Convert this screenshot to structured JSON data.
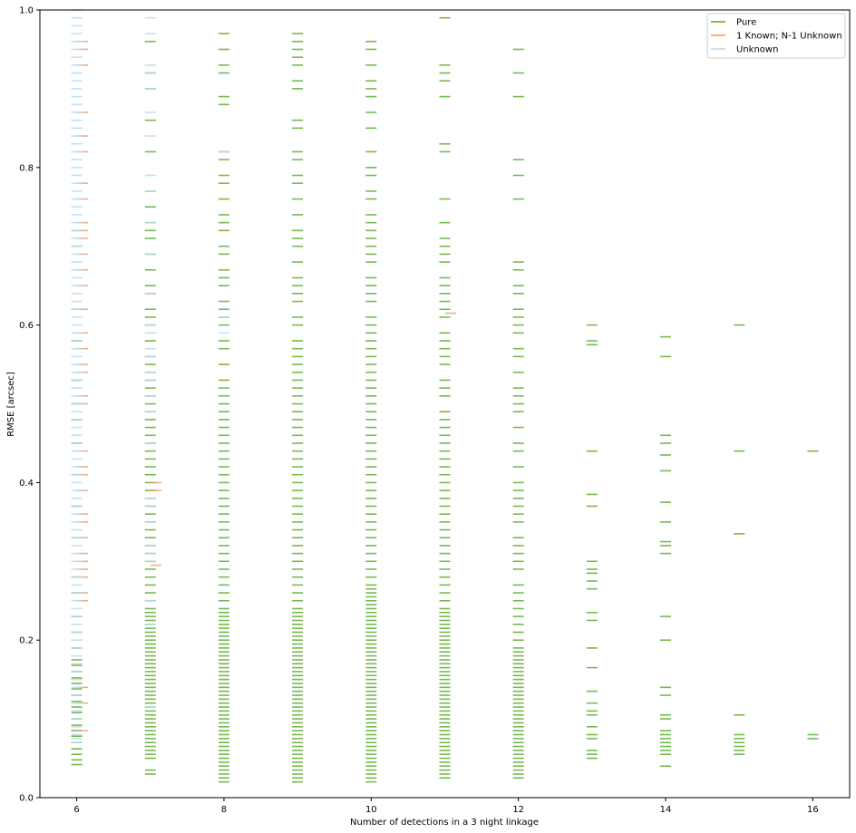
{
  "chart_data": {
    "type": "scatter",
    "marker": "horizontal-line",
    "title": "",
    "xlabel": "Number of detections in a 3 night linkage",
    "ylabel": "RMSE [arcsec]",
    "xlim": [
      5.5,
      16.5
    ],
    "ylim": [
      0.0,
      1.0
    ],
    "xticks": [
      6,
      8,
      10,
      12,
      14,
      16
    ],
    "yticks": [
      0.0,
      0.2,
      0.4,
      0.6,
      0.8,
      1.0
    ],
    "xtick_labels": [
      "6",
      "8",
      "10",
      "12",
      "14",
      "16"
    ],
    "ytick_labels": [
      "0.0",
      "0.2",
      "0.4",
      "0.6",
      "0.8",
      "1.0"
    ],
    "grid": false,
    "legend_position": "top-right",
    "series": [
      {
        "name": "Pure",
        "color": "#5fad30",
        "x_offset": 0.0,
        "points": [
          {
            "x": 6,
            "y": [
              0.042,
              0.048,
              0.055,
              0.062,
              0.07,
              0.078,
              0.085,
              0.092,
              0.1,
              0.108,
              0.115,
              0.122,
              0.13,
              0.138,
              0.145,
              0.152,
              0.16,
              0.168,
              0.175,
              0.19,
              0.21,
              0.23,
              0.26,
              0.28,
              0.33,
              0.37,
              0.41,
              0.45,
              0.48,
              0.5,
              0.53,
              0.58,
              0.62,
              0.7,
              0.72
            ]
          },
          {
            "x": 7,
            "y": [
              0.03,
              0.035,
              0.05,
              0.055,
              0.06,
              0.065,
              0.07,
              0.075,
              0.08,
              0.085,
              0.09,
              0.095,
              0.1,
              0.105,
              0.11,
              0.115,
              0.12,
              0.125,
              0.13,
              0.135,
              0.14,
              0.145,
              0.15,
              0.155,
              0.16,
              0.165,
              0.17,
              0.175,
              0.18,
              0.185,
              0.19,
              0.195,
              0.2,
              0.205,
              0.21,
              0.215,
              0.22,
              0.225,
              0.23,
              0.235,
              0.24,
              0.25,
              0.26,
              0.27,
              0.28,
              0.29,
              0.3,
              0.31,
              0.32,
              0.33,
              0.34,
              0.35,
              0.36,
              0.37,
              0.38,
              0.39,
              0.4,
              0.41,
              0.42,
              0.43,
              0.44,
              0.45,
              0.46,
              0.47,
              0.48,
              0.49,
              0.5,
              0.51,
              0.52,
              0.53,
              0.54,
              0.55,
              0.56,
              0.58,
              0.6,
              0.61,
              0.62,
              0.64,
              0.65,
              0.67,
              0.69,
              0.71,
              0.72,
              0.73,
              0.75,
              0.77,
              0.82,
              0.86,
              0.9,
              0.92,
              0.96
            ]
          },
          {
            "x": 8,
            "y": [
              0.02,
              0.025,
              0.03,
              0.035,
              0.04,
              0.045,
              0.05,
              0.055,
              0.06,
              0.065,
              0.07,
              0.075,
              0.08,
              0.085,
              0.09,
              0.095,
              0.1,
              0.105,
              0.11,
              0.115,
              0.12,
              0.125,
              0.13,
              0.135,
              0.14,
              0.145,
              0.15,
              0.155,
              0.16,
              0.165,
              0.17,
              0.175,
              0.18,
              0.185,
              0.19,
              0.195,
              0.2,
              0.205,
              0.21,
              0.215,
              0.22,
              0.225,
              0.23,
              0.235,
              0.24,
              0.25,
              0.26,
              0.27,
              0.28,
              0.29,
              0.3,
              0.31,
              0.32,
              0.33,
              0.34,
              0.35,
              0.36,
              0.37,
              0.38,
              0.39,
              0.4,
              0.41,
              0.42,
              0.43,
              0.44,
              0.45,
              0.46,
              0.47,
              0.48,
              0.49,
              0.5,
              0.51,
              0.52,
              0.53,
              0.55,
              0.57,
              0.58,
              0.6,
              0.61,
              0.62,
              0.63,
              0.65,
              0.66,
              0.67,
              0.69,
              0.7,
              0.72,
              0.73,
              0.74,
              0.76,
              0.78,
              0.79,
              0.81,
              0.82,
              0.88,
              0.89,
              0.92,
              0.93,
              0.95,
              0.97
            ]
          },
          {
            "x": 9,
            "y": [
              0.02,
              0.025,
              0.03,
              0.035,
              0.04,
              0.045,
              0.05,
              0.055,
              0.06,
              0.065,
              0.07,
              0.075,
              0.08,
              0.085,
              0.09,
              0.095,
              0.1,
              0.105,
              0.11,
              0.115,
              0.12,
              0.125,
              0.13,
              0.135,
              0.14,
              0.145,
              0.15,
              0.155,
              0.16,
              0.165,
              0.17,
              0.175,
              0.18,
              0.185,
              0.19,
              0.195,
              0.2,
              0.205,
              0.21,
              0.215,
              0.22,
              0.225,
              0.23,
              0.235,
              0.24,
              0.25,
              0.26,
              0.27,
              0.28,
              0.29,
              0.3,
              0.31,
              0.32,
              0.33,
              0.34,
              0.35,
              0.36,
              0.37,
              0.38,
              0.39,
              0.4,
              0.41,
              0.42,
              0.43,
              0.44,
              0.45,
              0.46,
              0.47,
              0.48,
              0.49,
              0.5,
              0.51,
              0.52,
              0.53,
              0.54,
              0.55,
              0.56,
              0.57,
              0.58,
              0.6,
              0.61,
              0.63,
              0.64,
              0.65,
              0.66,
              0.68,
              0.7,
              0.71,
              0.72,
              0.74,
              0.76,
              0.78,
              0.79,
              0.81,
              0.82,
              0.85,
              0.86,
              0.9,
              0.91,
              0.93,
              0.94,
              0.95,
              0.96,
              0.97
            ]
          },
          {
            "x": 10,
            "y": [
              0.02,
              0.025,
              0.03,
              0.035,
              0.04,
              0.045,
              0.05,
              0.055,
              0.06,
              0.065,
              0.07,
              0.075,
              0.08,
              0.085,
              0.09,
              0.095,
              0.1,
              0.105,
              0.11,
              0.115,
              0.12,
              0.125,
              0.13,
              0.135,
              0.14,
              0.145,
              0.15,
              0.155,
              0.16,
              0.165,
              0.17,
              0.175,
              0.18,
              0.185,
              0.19,
              0.195,
              0.2,
              0.205,
              0.21,
              0.215,
              0.22,
              0.225,
              0.23,
              0.235,
              0.24,
              0.245,
              0.25,
              0.255,
              0.26,
              0.265,
              0.27,
              0.28,
              0.29,
              0.3,
              0.31,
              0.32,
              0.33,
              0.34,
              0.35,
              0.36,
              0.37,
              0.38,
              0.39,
              0.4,
              0.41,
              0.42,
              0.43,
              0.44,
              0.45,
              0.46,
              0.47,
              0.48,
              0.49,
              0.5,
              0.51,
              0.52,
              0.53,
              0.54,
              0.55,
              0.56,
              0.57,
              0.58,
              0.59,
              0.6,
              0.61,
              0.63,
              0.64,
              0.65,
              0.66,
              0.68,
              0.69,
              0.7,
              0.71,
              0.72,
              0.73,
              0.74,
              0.76,
              0.77,
              0.79,
              0.8,
              0.82,
              0.85,
              0.87,
              0.89,
              0.9,
              0.91,
              0.93,
              0.95,
              0.96
            ]
          },
          {
            "x": 11,
            "y": [
              0.025,
              0.03,
              0.035,
              0.04,
              0.045,
              0.05,
              0.055,
              0.06,
              0.065,
              0.07,
              0.075,
              0.08,
              0.085,
              0.09,
              0.095,
              0.1,
              0.105,
              0.11,
              0.115,
              0.12,
              0.125,
              0.13,
              0.135,
              0.14,
              0.145,
              0.15,
              0.155,
              0.16,
              0.165,
              0.17,
              0.175,
              0.18,
              0.185,
              0.19,
              0.195,
              0.2,
              0.205,
              0.21,
              0.215,
              0.22,
              0.225,
              0.23,
              0.235,
              0.24,
              0.25,
              0.26,
              0.27,
              0.28,
              0.29,
              0.3,
              0.31,
              0.32,
              0.33,
              0.34,
              0.35,
              0.36,
              0.37,
              0.38,
              0.39,
              0.4,
              0.41,
              0.42,
              0.43,
              0.44,
              0.45,
              0.46,
              0.47,
              0.48,
              0.49,
              0.51,
              0.52,
              0.53,
              0.55,
              0.56,
              0.57,
              0.58,
              0.59,
              0.61,
              0.62,
              0.63,
              0.64,
              0.65,
              0.66,
              0.68,
              0.69,
              0.7,
              0.71,
              0.73,
              0.76,
              0.82,
              0.83,
              0.89,
              0.91,
              0.92,
              0.93,
              0.99
            ]
          },
          {
            "x": 12,
            "y": [
              0.025,
              0.03,
              0.035,
              0.04,
              0.045,
              0.05,
              0.055,
              0.06,
              0.065,
              0.07,
              0.075,
              0.08,
              0.085,
              0.09,
              0.095,
              0.1,
              0.105,
              0.11,
              0.115,
              0.12,
              0.125,
              0.13,
              0.135,
              0.14,
              0.145,
              0.15,
              0.155,
              0.16,
              0.165,
              0.17,
              0.175,
              0.18,
              0.185,
              0.19,
              0.2,
              0.21,
              0.22,
              0.23,
              0.24,
              0.25,
              0.26,
              0.27,
              0.29,
              0.3,
              0.31,
              0.32,
              0.33,
              0.35,
              0.36,
              0.37,
              0.38,
              0.39,
              0.4,
              0.42,
              0.44,
              0.45,
              0.47,
              0.49,
              0.5,
              0.51,
              0.52,
              0.54,
              0.56,
              0.57,
              0.59,
              0.6,
              0.61,
              0.62,
              0.64,
              0.65,
              0.67,
              0.68,
              0.76,
              0.79,
              0.81,
              0.89,
              0.92,
              0.95
            ]
          },
          {
            "x": 13,
            "y": [
              0.05,
              0.055,
              0.06,
              0.075,
              0.08,
              0.09,
              0.105,
              0.11,
              0.12,
              0.135,
              0.165,
              0.19,
              0.225,
              0.235,
              0.265,
              0.275,
              0.285,
              0.29,
              0.3,
              0.37,
              0.385,
              0.44,
              0.575,
              0.58,
              0.6
            ]
          },
          {
            "x": 14,
            "y": [
              0.04,
              0.055,
              0.06,
              0.065,
              0.07,
              0.075,
              0.08,
              0.085,
              0.1,
              0.105,
              0.13,
              0.14,
              0.2,
              0.23,
              0.31,
              0.32,
              0.325,
              0.35,
              0.375,
              0.415,
              0.435,
              0.45,
              0.46,
              0.56,
              0.585
            ]
          },
          {
            "x": 15,
            "y": [
              0.055,
              0.06,
              0.065,
              0.07,
              0.075,
              0.08,
              0.105,
              0.335,
              0.44,
              0.6
            ]
          },
          {
            "x": 16,
            "y": [
              0.075,
              0.08,
              0.44
            ]
          }
        ]
      },
      {
        "name": "1 Known; N-1 Unknown",
        "color": "#f0a06e",
        "x_offset": 0.08,
        "points": [
          {
            "x": 6,
            "y": [
              0.085,
              0.12,
              0.14,
              0.25,
              0.26,
              0.28,
              0.29,
              0.3,
              0.31,
              0.33,
              0.35,
              0.36,
              0.39,
              0.41,
              0.42,
              0.44,
              0.5,
              0.51,
              0.54,
              0.55,
              0.57,
              0.59,
              0.62,
              0.65,
              0.67,
              0.69,
              0.71,
              0.72,
              0.73,
              0.76,
              0.78,
              0.82,
              0.84,
              0.87,
              0.93,
              0.95,
              0.96
            ]
          },
          {
            "x": 7,
            "y": [
              0.295,
              0.39,
              0.4
            ]
          },
          {
            "x": 11,
            "y": [
              0.615
            ]
          }
        ]
      },
      {
        "name": "Unknown",
        "color": "#b8daf2",
        "x_offset": 0.0,
        "points": [
          {
            "x": 6,
            "y": [
              0.07,
              0.075,
              0.08,
              0.09,
              0.1,
              0.11,
              0.12,
              0.13,
              0.14,
              0.15,
              0.16,
              0.17,
              0.18,
              0.19,
              0.2,
              0.21,
              0.22,
              0.23,
              0.24,
              0.25,
              0.26,
              0.27,
              0.28,
              0.29,
              0.3,
              0.31,
              0.32,
              0.33,
              0.34,
              0.35,
              0.36,
              0.37,
              0.38,
              0.39,
              0.4,
              0.41,
              0.42,
              0.43,
              0.44,
              0.45,
              0.46,
              0.47,
              0.48,
              0.49,
              0.5,
              0.51,
              0.52,
              0.53,
              0.54,
              0.55,
              0.56,
              0.57,
              0.58,
              0.59,
              0.6,
              0.61,
              0.62,
              0.63,
              0.64,
              0.65,
              0.66,
              0.67,
              0.68,
              0.69,
              0.7,
              0.71,
              0.72,
              0.73,
              0.74,
              0.75,
              0.76,
              0.77,
              0.78,
              0.79,
              0.8,
              0.81,
              0.82,
              0.83,
              0.84,
              0.85,
              0.86,
              0.87,
              0.88,
              0.89,
              0.9,
              0.91,
              0.92,
              0.93,
              0.94,
              0.95,
              0.96,
              0.97,
              0.98,
              0.99,
              1.0
            ]
          },
          {
            "x": 7,
            "y": [
              0.115,
              0.22,
              0.25,
              0.3,
              0.31,
              0.32,
              0.35,
              0.37,
              0.38,
              0.45,
              0.49,
              0.51,
              0.53,
              0.54,
              0.56,
              0.57,
              0.59,
              0.6,
              0.64,
              0.69,
              0.73,
              0.77,
              0.79,
              0.84,
              0.87,
              0.9,
              0.92,
              0.93,
              0.97,
              0.99
            ]
          },
          {
            "x": 8,
            "y": [
              0.59,
              0.61,
              0.82
            ]
          }
        ]
      }
    ]
  }
}
